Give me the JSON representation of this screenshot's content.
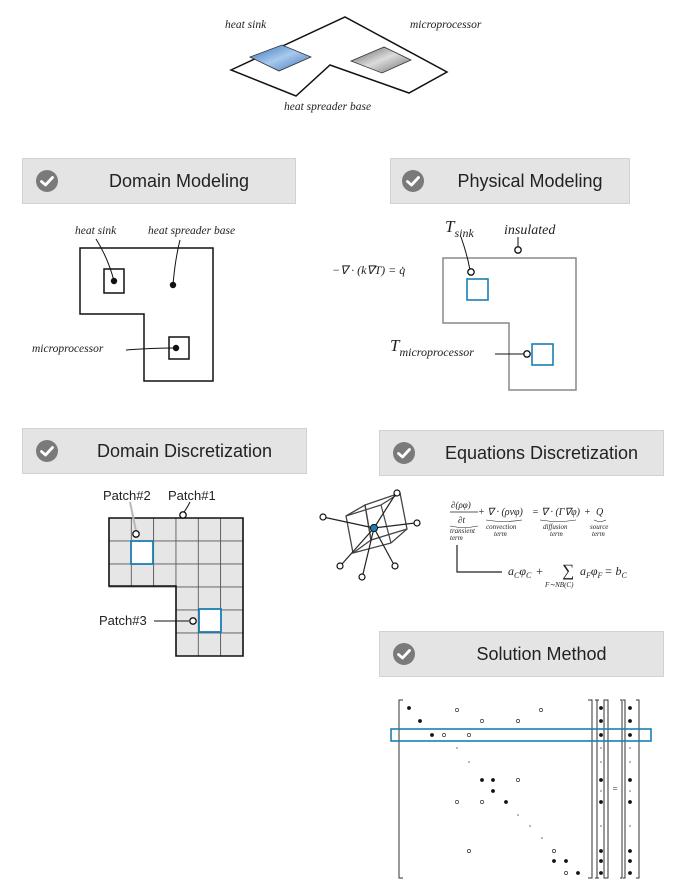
{
  "top": {
    "label_heat_sink": "heat sink",
    "label_microprocessor": "microprocessor",
    "label_base": "heat spreader base"
  },
  "sections": {
    "domain_modeling": "Domain Modeling",
    "physical_modeling": "Physical Modeling",
    "domain_discretization": "Domain Discretization",
    "equations_discretization": "Equations Discretization",
    "solution_method": "Solution Method"
  },
  "domain_model": {
    "heat_sink": "heat sink",
    "base": "heat spreader base",
    "microprocessor": "microprocessor"
  },
  "physical_model": {
    "t_sink_base": "T",
    "t_sink_sub": "sink",
    "insulated": "insulated",
    "t_micro_base": "T",
    "t_micro_sub": "microprocessor",
    "pde": "−∇ · (k∇T) = q̇"
  },
  "discretization": {
    "patch1": "Patch#1",
    "patch2": "Patch#2",
    "patch3": "Patch#3"
  },
  "equations": {
    "transient_num": "∂(ρφ)",
    "transient_den": "∂t",
    "convection": "+ ∇ · (ρvφ)",
    "equals_diffusion": "= ∇ · (Γ∇φ)",
    "plus_source": "+",
    "source": "Q",
    "term_transient": "transient",
    "term_word": "term",
    "term_convection": "convection",
    "term_diffusion": "diffusion",
    "term_source": "source",
    "discrete_lhs": "a",
    "discrete_sub_c": "C",
    "discrete_phi": "φ",
    "discrete_plus": "+",
    "sum_symbol": "∑",
    "sum_index": "F∼NB(C)",
    "discrete_af": "a",
    "discrete_sub_f": "F",
    "discrete_eq": "= b",
    "discrete_bc": "C"
  },
  "matrix": {
    "equals": "="
  },
  "colors": {
    "accent_blue": "#1a7fb5",
    "header_bg": "#e4e4e4",
    "check_bg": "#7a7a7a"
  }
}
